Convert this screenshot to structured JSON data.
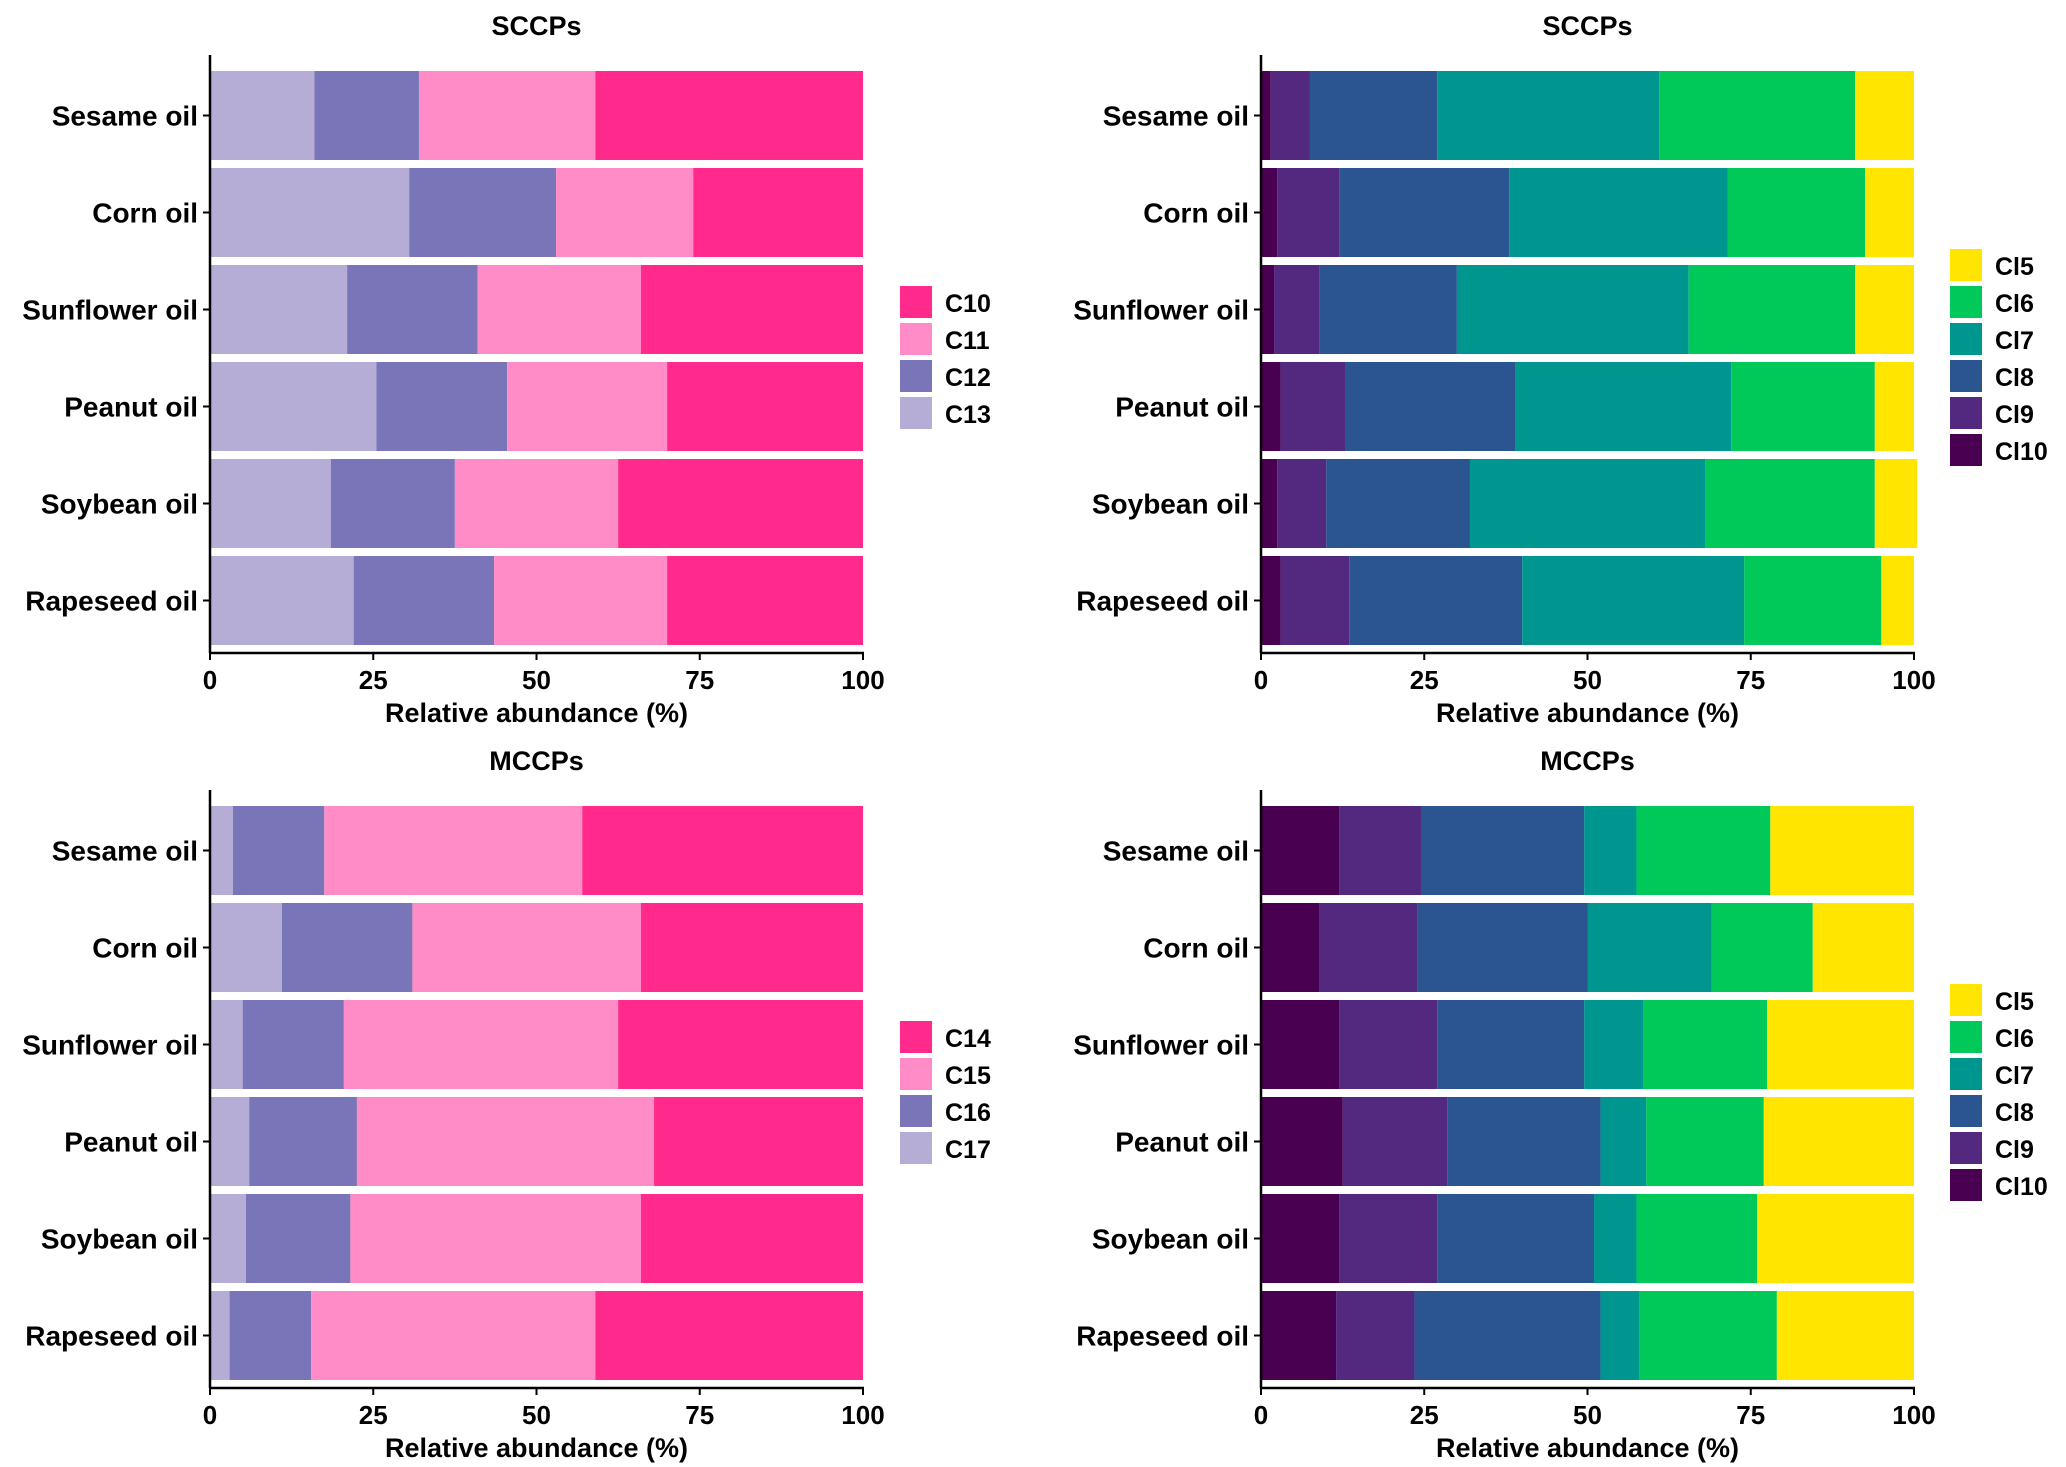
{
  "palettes": {
    "carbon": [
      "#FF2A8C",
      "#FF8CC6",
      "#7A74B8",
      "#B5ADD6"
    ],
    "chlorine": [
      "#FFE500",
      "#00C95A",
      "#009690",
      "#2B5591",
      "#53287F",
      "#4A0050"
    ]
  },
  "chart_data": [
    {
      "type": "bar",
      "orientation": "horizontal",
      "stacked": true,
      "title": "SCCPs",
      "xlabel": "Relative abundance (%)",
      "ylabel": "",
      "xlim": [
        0,
        100
      ],
      "xticks": [
        "0",
        "25",
        "50",
        "75",
        "100"
      ],
      "categories": [
        "Sesame oil",
        "Corn oil",
        "Sunflower oil",
        "Peanut oil",
        "Soybean oil",
        "Rapeseed oil"
      ],
      "series": [
        {
          "name": "C13",
          "values": [
            16,
            30.5,
            21,
            25.5,
            18.5,
            22
          ]
        },
        {
          "name": "C12",
          "values": [
            16,
            22.5,
            20,
            20,
            19,
            21.5
          ]
        },
        {
          "name": "C11",
          "values": [
            27,
            21,
            25,
            24.5,
            25,
            26.5
          ]
        },
        {
          "name": "C10",
          "values": [
            41,
            26,
            34,
            30,
            37.5,
            30
          ]
        }
      ],
      "legend": [
        "C10",
        "C11",
        "C12",
        "C13"
      ],
      "legend_position": "right"
    },
    {
      "type": "bar",
      "orientation": "horizontal",
      "stacked": true,
      "title": "SCCPs",
      "xlabel": "Relative abundance (%)",
      "ylabel": "",
      "xlim": [
        0,
        100
      ],
      "xticks": [
        "0",
        "25",
        "50",
        "75",
        "100"
      ],
      "categories": [
        "Sesame oil",
        "Corn oil",
        "Sunflower oil",
        "Peanut oil",
        "Soybean oil",
        "Rapeseed oil"
      ],
      "series": [
        {
          "name": "Cl10",
          "values": [
            1.5,
            2.5,
            2,
            3,
            2.5,
            3
          ]
        },
        {
          "name": "Cl9",
          "values": [
            6,
            9.5,
            7,
            10,
            7.5,
            10.5
          ]
        },
        {
          "name": "Cl8",
          "values": [
            19.5,
            26,
            21,
            26,
            22,
            26.5
          ]
        },
        {
          "name": "Cl7",
          "values": [
            34,
            33.5,
            35.5,
            33,
            36,
            34
          ]
        },
        {
          "name": "Cl6",
          "values": [
            30,
            21,
            25.5,
            22,
            26,
            21
          ]
        },
        {
          "name": "Cl5",
          "values": [
            9,
            7.5,
            9,
            6,
            6.5,
            5
          ]
        }
      ],
      "legend": [
        "Cl5",
        "Cl6",
        "Cl7",
        "Cl8",
        "Cl9",
        "Cl10"
      ],
      "legend_position": "right"
    },
    {
      "type": "bar",
      "orientation": "horizontal",
      "stacked": true,
      "title": "MCCPs",
      "xlabel": "Relative abundance (%)",
      "ylabel": "",
      "xlim": [
        0,
        100
      ],
      "xticks": [
        "0",
        "25",
        "50",
        "75",
        "100"
      ],
      "categories": [
        "Sesame oil",
        "Corn oil",
        "Sunflower oil",
        "Peanut oil",
        "Soybean oil",
        "Rapeseed oil"
      ],
      "series": [
        {
          "name": "C17",
          "values": [
            3.5,
            11,
            5,
            6,
            5.5,
            3
          ]
        },
        {
          "name": "C16",
          "values": [
            14,
            20,
            15.5,
            16.5,
            16,
            12.5
          ]
        },
        {
          "name": "C15",
          "values": [
            39.5,
            35,
            42,
            45.5,
            44.5,
            43.5
          ]
        },
        {
          "name": "C14",
          "values": [
            43,
            34,
            37.5,
            32,
            34,
            41
          ]
        }
      ],
      "legend": [
        "C14",
        "C15",
        "C16",
        "C17"
      ],
      "legend_position": "right"
    },
    {
      "type": "bar",
      "orientation": "horizontal",
      "stacked": true,
      "title": "MCCPs",
      "xlabel": "Relative abundance (%)",
      "ylabel": "",
      "xlim": [
        0,
        100
      ],
      "xticks": [
        "0",
        "25",
        "50",
        "75",
        "100"
      ],
      "categories": [
        "Sesame oil",
        "Corn oil",
        "Sunflower oil",
        "Peanut oil",
        "Soybean oil",
        "Rapeseed oil"
      ],
      "series": [
        {
          "name": "Cl10",
          "values": [
            12,
            9,
            12,
            12.5,
            12,
            11.5
          ]
        },
        {
          "name": "Cl9",
          "values": [
            12.5,
            15,
            15,
            16,
            15,
            12
          ]
        },
        {
          "name": "Cl8",
          "values": [
            25,
            26,
            22.5,
            23.5,
            24,
            28.5
          ]
        },
        {
          "name": "Cl7",
          "values": [
            8,
            19,
            9,
            7,
            6.5,
            6
          ]
        },
        {
          "name": "Cl6",
          "values": [
            20.5,
            15.5,
            19,
            18,
            18.5,
            21
          ]
        },
        {
          "name": "Cl5",
          "values": [
            22,
            15.5,
            22.5,
            23,
            24,
            21
          ]
        }
      ],
      "legend": [
        "Cl5",
        "Cl6",
        "Cl7",
        "Cl8",
        "Cl9",
        "Cl10"
      ],
      "legend_position": "right"
    }
  ]
}
